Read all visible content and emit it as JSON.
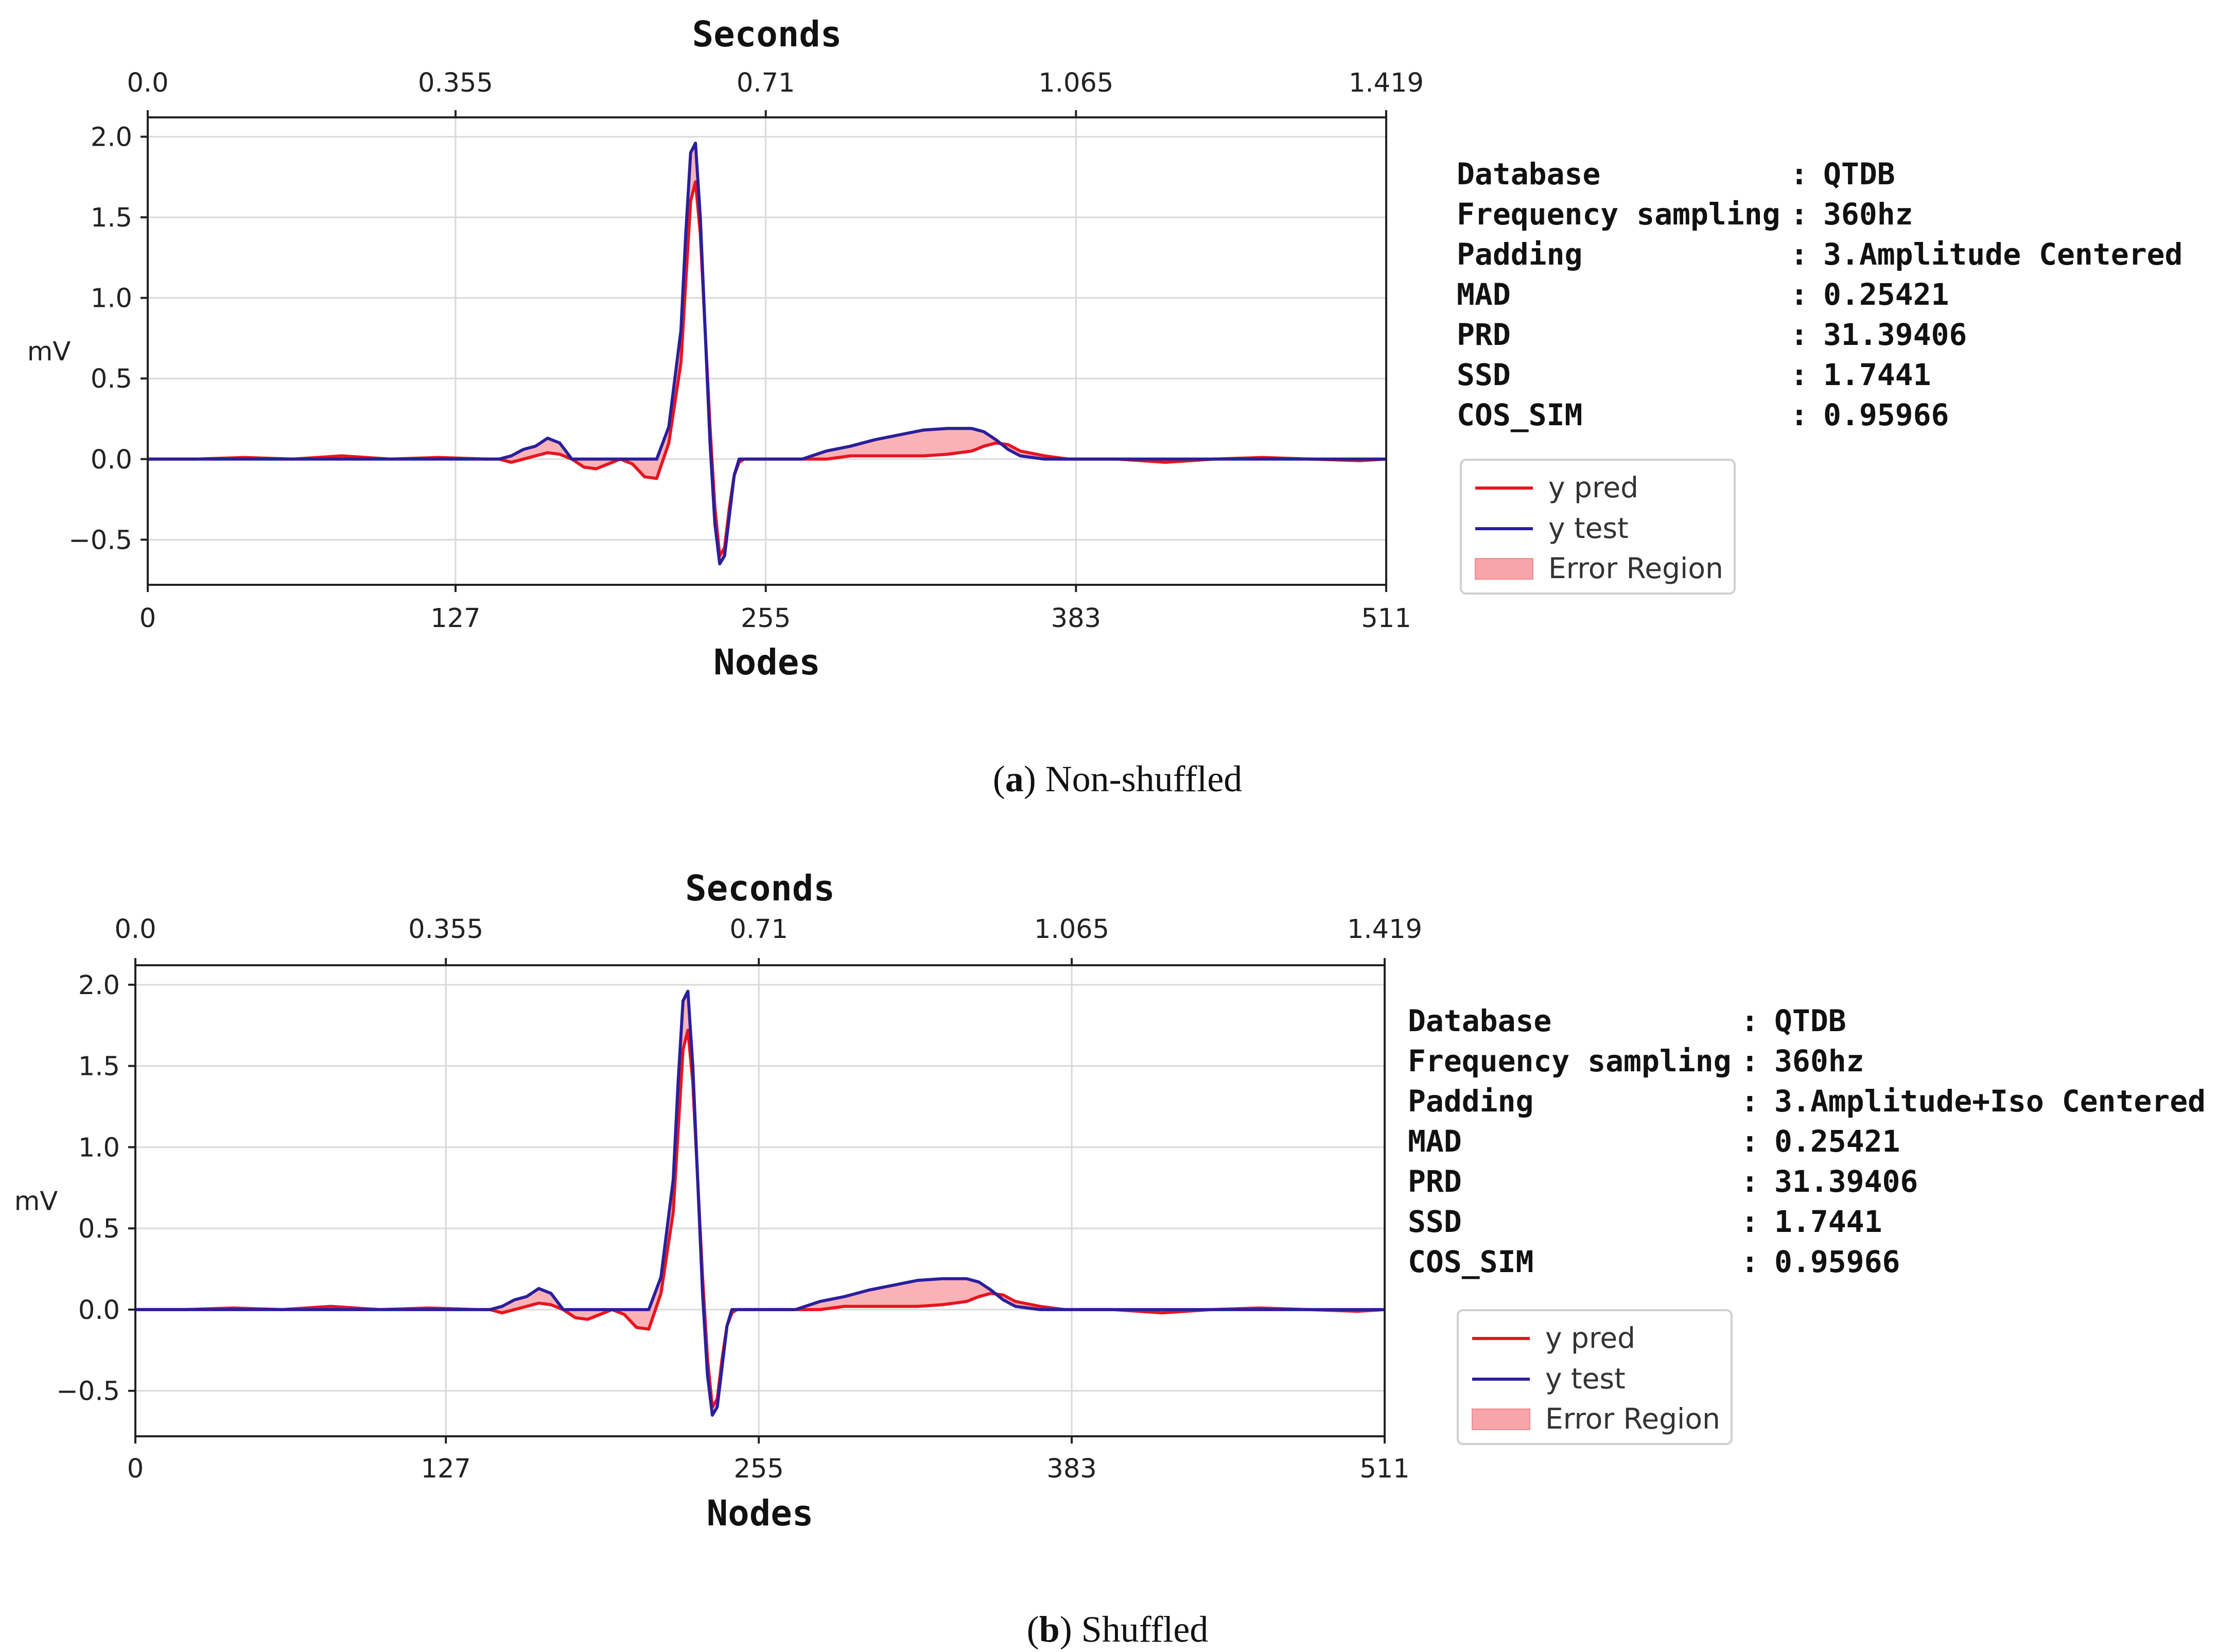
{
  "chart_data": [
    {
      "type": "line",
      "caption_letter": "a",
      "caption_text": "Non-shuffled",
      "top_axis_title": "Seconds",
      "xlabel": "Nodes",
      "ylabel": "mV",
      "top_ticks": [
        "0.0",
        "0.355",
        "0.71",
        "1.065",
        "1.419"
      ],
      "bottom_ticks": [
        "0",
        "127",
        "255",
        "383",
        "511"
      ],
      "yticks": [
        "2.0",
        "1.5",
        "1.0",
        "0.5",
        "0.0",
        "−0.5"
      ],
      "xlim": [
        0,
        511
      ],
      "ylim": [
        -0.78,
        2.12
      ],
      "grid": true,
      "info": [
        {
          "key": "Database",
          "value": "QTDB"
        },
        {
          "key": "Frequency sampling",
          "value": "360hz"
        },
        {
          "key": "Padding",
          "value": "3.Amplitude Centered"
        },
        {
          "key": "MAD",
          "value": "0.25421"
        },
        {
          "key": "PRD",
          "value": "31.39406"
        },
        {
          "key": "SSD",
          "value": "1.7441"
        },
        {
          "key": "COS_SIM",
          "value": "0.95966"
        }
      ],
      "legend": [
        "y pred",
        "y test",
        "Error Region"
      ],
      "series": [
        {
          "name": "y pred",
          "color": "#e8141e",
          "x": [
            0,
            20,
            40,
            60,
            80,
            100,
            120,
            140,
            145,
            150,
            155,
            160,
            165,
            170,
            175,
            180,
            185,
            190,
            195,
            200,
            205,
            210,
            215,
            220,
            222,
            224,
            226,
            228,
            230,
            232,
            234,
            236,
            238,
            240,
            242,
            244,
            246,
            248,
            250,
            255,
            260,
            270,
            280,
            290,
            300,
            310,
            320,
            330,
            340,
            345,
            350,
            355,
            360,
            370,
            380,
            390,
            400,
            420,
            440,
            460,
            480,
            500,
            511
          ],
          "y": [
            0.0,
            0.0,
            0.01,
            0.0,
            0.02,
            0.0,
            0.01,
            0.0,
            0.0,
            -0.02,
            0.0,
            0.02,
            0.04,
            0.03,
            0.0,
            -0.05,
            -0.06,
            -0.03,
            0.0,
            -0.03,
            -0.11,
            -0.12,
            0.1,
            0.6,
            1.1,
            1.6,
            1.72,
            1.4,
            0.8,
            0.2,
            -0.3,
            -0.6,
            -0.55,
            -0.3,
            -0.1,
            -0.02,
            0.0,
            0.0,
            0.0,
            0.0,
            0.0,
            0.0,
            0.0,
            0.02,
            0.02,
            0.02,
            0.02,
            0.03,
            0.05,
            0.08,
            0.1,
            0.09,
            0.05,
            0.02,
            0.0,
            0.0,
            0.0,
            -0.02,
            0.0,
            0.01,
            0.0,
            -0.01,
            0.0
          ]
        },
        {
          "name": "y test",
          "color": "#2a1f9c",
          "x": [
            0,
            20,
            40,
            60,
            80,
            100,
            120,
            140,
            145,
            150,
            155,
            160,
            165,
            170,
            175,
            180,
            185,
            190,
            195,
            200,
            205,
            210,
            215,
            220,
            222,
            224,
            226,
            228,
            230,
            232,
            234,
            236,
            238,
            240,
            242,
            244,
            246,
            248,
            250,
            255,
            260,
            270,
            280,
            290,
            300,
            310,
            320,
            330,
            340,
            345,
            350,
            355,
            360,
            370,
            380,
            390,
            400,
            420,
            440,
            460,
            480,
            500,
            511
          ],
          "y": [
            0.0,
            0.0,
            0.0,
            0.0,
            0.0,
            0.0,
            0.0,
            0.0,
            0.0,
            0.02,
            0.06,
            0.08,
            0.13,
            0.1,
            0.0,
            0.0,
            0.0,
            0.0,
            0.0,
            0.0,
            0.0,
            0.0,
            0.2,
            0.8,
            1.4,
            1.9,
            1.96,
            1.5,
            0.8,
            0.1,
            -0.4,
            -0.65,
            -0.6,
            -0.35,
            -0.1,
            0.0,
            0.0,
            0.0,
            0.0,
            0.0,
            0.0,
            0.0,
            0.05,
            0.08,
            0.12,
            0.15,
            0.18,
            0.19,
            0.19,
            0.17,
            0.12,
            0.06,
            0.02,
            0.0,
            0.0,
            0.0,
            0.0,
            0.0,
            0.0,
            0.0,
            0.0,
            0.0,
            0.0
          ]
        }
      ]
    },
    {
      "type": "line",
      "caption_letter": "b",
      "caption_text": "Shuffled",
      "top_axis_title": "Seconds",
      "xlabel": "Nodes",
      "ylabel": "mV",
      "top_ticks": [
        "0.0",
        "0.355",
        "0.71",
        "1.065",
        "1.419"
      ],
      "bottom_ticks": [
        "0",
        "127",
        "255",
        "383",
        "511"
      ],
      "yticks": [
        "2.0",
        "1.5",
        "1.0",
        "0.5",
        "0.0",
        "−0.5"
      ],
      "xlim": [
        0,
        511
      ],
      "ylim": [
        -0.78,
        2.12
      ],
      "grid": true,
      "info": [
        {
          "key": "Database",
          "value": "QTDB"
        },
        {
          "key": "Frequency sampling",
          "value": "360hz"
        },
        {
          "key": "Padding",
          "value": "3.Amplitude+Iso Centered"
        },
        {
          "key": "MAD",
          "value": "0.25421"
        },
        {
          "key": "PRD",
          "value": "31.39406"
        },
        {
          "key": "SSD",
          "value": "1.7441"
        },
        {
          "key": "COS_SIM",
          "value": "0.95966"
        }
      ],
      "legend": [
        "y pred",
        "y test",
        "Error Region"
      ],
      "series": [
        {
          "name": "y pred",
          "color": "#e8141e",
          "x": [
            0,
            20,
            40,
            60,
            80,
            100,
            120,
            140,
            145,
            150,
            155,
            160,
            165,
            170,
            175,
            180,
            185,
            190,
            195,
            200,
            205,
            210,
            215,
            220,
            222,
            224,
            226,
            228,
            230,
            232,
            234,
            236,
            238,
            240,
            242,
            244,
            246,
            248,
            250,
            255,
            260,
            270,
            280,
            290,
            300,
            310,
            320,
            330,
            340,
            345,
            350,
            355,
            360,
            370,
            380,
            390,
            400,
            420,
            440,
            460,
            480,
            500,
            511
          ],
          "y": [
            0.0,
            0.0,
            0.01,
            0.0,
            0.02,
            0.0,
            0.01,
            0.0,
            0.0,
            -0.02,
            0.0,
            0.02,
            0.04,
            0.03,
            0.0,
            -0.05,
            -0.06,
            -0.03,
            0.0,
            -0.03,
            -0.11,
            -0.12,
            0.1,
            0.6,
            1.1,
            1.6,
            1.72,
            1.4,
            0.8,
            0.2,
            -0.3,
            -0.6,
            -0.55,
            -0.3,
            -0.1,
            -0.02,
            0.0,
            0.0,
            0.0,
            0.0,
            0.0,
            0.0,
            0.0,
            0.02,
            0.02,
            0.02,
            0.02,
            0.03,
            0.05,
            0.08,
            0.1,
            0.09,
            0.05,
            0.02,
            0.0,
            0.0,
            0.0,
            -0.02,
            0.0,
            0.01,
            0.0,
            -0.01,
            0.0
          ]
        },
        {
          "name": "y test",
          "color": "#2a1f9c",
          "x": [
            0,
            20,
            40,
            60,
            80,
            100,
            120,
            140,
            145,
            150,
            155,
            160,
            165,
            170,
            175,
            180,
            185,
            190,
            195,
            200,
            205,
            210,
            215,
            220,
            222,
            224,
            226,
            228,
            230,
            232,
            234,
            236,
            238,
            240,
            242,
            244,
            246,
            248,
            250,
            255,
            260,
            270,
            280,
            290,
            300,
            310,
            320,
            330,
            340,
            345,
            350,
            355,
            360,
            370,
            380,
            390,
            400,
            420,
            440,
            460,
            480,
            500,
            511
          ],
          "y": [
            0.0,
            0.0,
            0.0,
            0.0,
            0.0,
            0.0,
            0.0,
            0.0,
            0.0,
            0.02,
            0.06,
            0.08,
            0.13,
            0.1,
            0.0,
            0.0,
            0.0,
            0.0,
            0.0,
            0.0,
            0.0,
            0.0,
            0.2,
            0.8,
            1.4,
            1.9,
            1.96,
            1.5,
            0.8,
            0.1,
            -0.4,
            -0.65,
            -0.6,
            -0.35,
            -0.1,
            0.0,
            0.0,
            0.0,
            0.0,
            0.0,
            0.0,
            0.0,
            0.05,
            0.08,
            0.12,
            0.15,
            0.18,
            0.19,
            0.19,
            0.17,
            0.12,
            0.06,
            0.02,
            0.0,
            0.0,
            0.0,
            0.0,
            0.0,
            0.0,
            0.0,
            0.0,
            0.0,
            0.0
          ]
        }
      ]
    }
  ]
}
